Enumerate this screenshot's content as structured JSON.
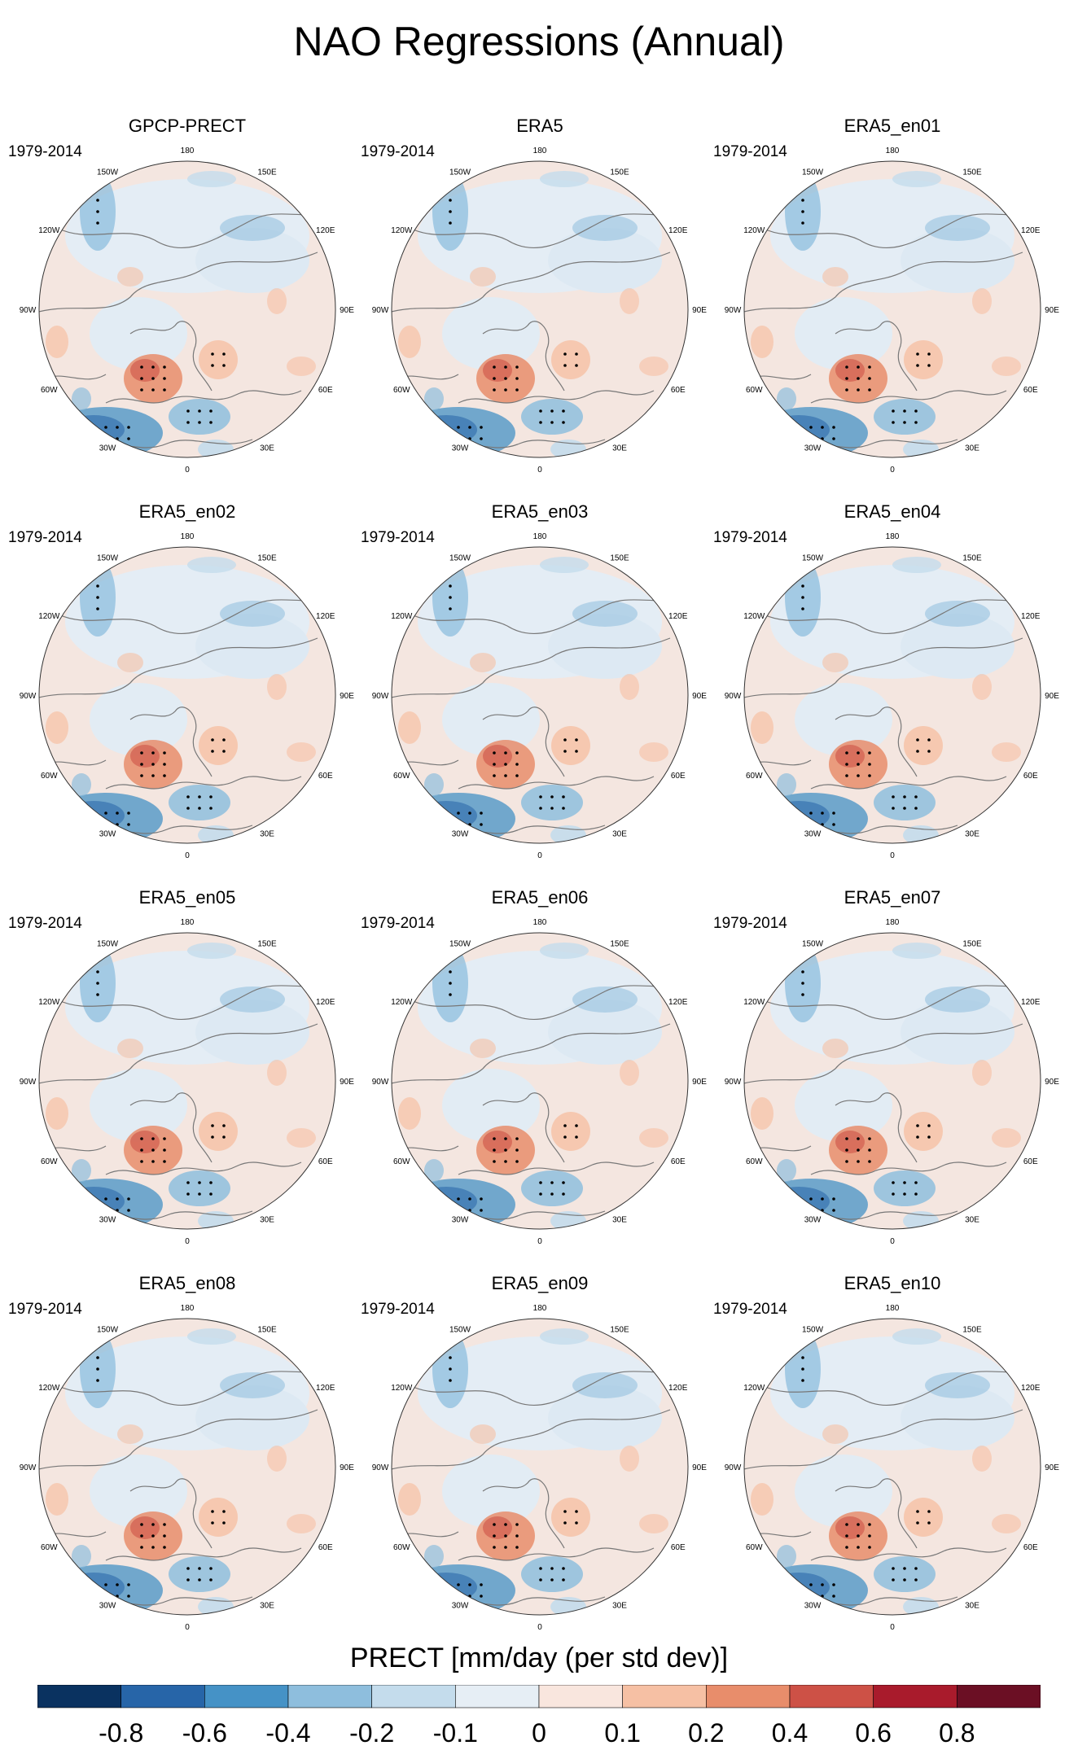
{
  "title": "NAO Regressions (Annual)",
  "panels": [
    {
      "title": "GPCP-PRECT",
      "period": "1979-2014"
    },
    {
      "title": "ERA5",
      "period": "1979-2014"
    },
    {
      "title": "ERA5_en01",
      "period": "1979-2014"
    },
    {
      "title": "ERA5_en02",
      "period": "1979-2014"
    },
    {
      "title": "ERA5_en03",
      "period": "1979-2014"
    },
    {
      "title": "ERA5_en04",
      "period": "1979-2014"
    },
    {
      "title": "ERA5_en05",
      "period": "1979-2014"
    },
    {
      "title": "ERA5_en06",
      "period": "1979-2014"
    },
    {
      "title": "ERA5_en07",
      "period": "1979-2014"
    },
    {
      "title": "ERA5_en08",
      "period": "1979-2014"
    },
    {
      "title": "ERA5_en09",
      "period": "1979-2014"
    },
    {
      "title": "ERA5_en10",
      "period": "1979-2014"
    }
  ],
  "longitude_labels": [
    "180",
    "150E",
    "120E",
    "90E",
    "60E",
    "30E",
    "0",
    "30W",
    "60W",
    "90W",
    "120W",
    "150W"
  ],
  "colorbar": {
    "title": "PRECT [mm/day (per std dev)]",
    "tick_labels": [
      "-0.8",
      "-0.6",
      "-0.4",
      "-0.2",
      "-0.1",
      "0",
      "0.1",
      "0.2",
      "0.4",
      "0.6",
      "0.8"
    ],
    "colors": [
      "#0a3260",
      "#2765a8",
      "#4592c6",
      "#8ebedd",
      "#c4dcec",
      "#e6eef5",
      "#f9e6de",
      "#f6c0a4",
      "#e88d6b",
      "#cd5146",
      "#a91b2c",
      "#6b0f24"
    ]
  }
}
